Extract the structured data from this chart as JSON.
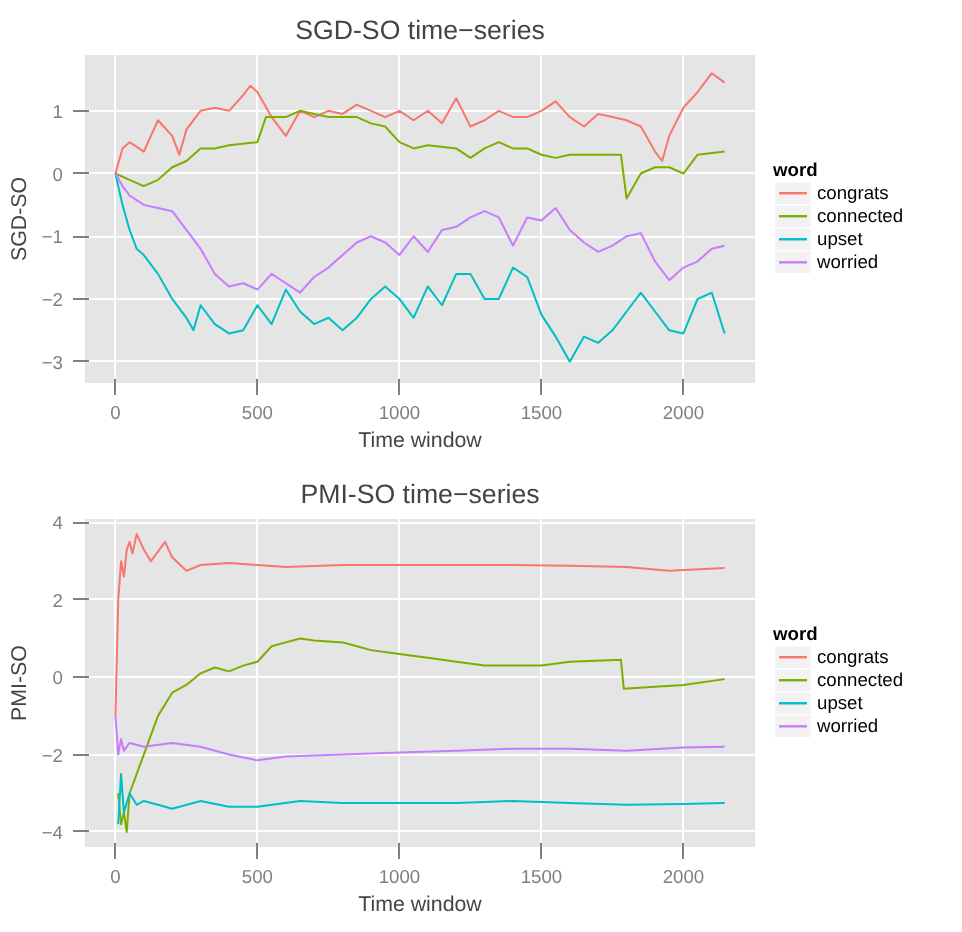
{
  "chart_data": [
    {
      "type": "line",
      "title": "SGD-SO time−series",
      "xlabel": "Time window",
      "ylabel": "SGD-SO",
      "legend_title": "word",
      "xlim": [
        -107,
        2252
      ],
      "ylim": [
        -3.34,
        1.89
      ],
      "xticks": [
        0,
        500,
        1000,
        1500,
        2000
      ],
      "yticks": [
        -3,
        -2,
        -1,
        0,
        1
      ],
      "grid": true,
      "legend": "right",
      "series": [
        {
          "name": "congrats",
          "color": "#f8766d",
          "x": [
            0,
            25,
            50,
            100,
            150,
            200,
            225,
            250,
            300,
            350,
            400,
            450,
            475,
            500,
            550,
            600,
            650,
            700,
            750,
            800,
            850,
            900,
            950,
            1000,
            1050,
            1100,
            1150,
            1200,
            1250,
            1300,
            1350,
            1400,
            1450,
            1500,
            1550,
            1600,
            1650,
            1700,
            1750,
            1800,
            1850,
            1900,
            1925,
            1950,
            2000,
            2050,
            2100,
            2145
          ],
          "values": [
            0,
            0.4,
            0.5,
            0.35,
            0.85,
            0.6,
            0.3,
            0.7,
            1.0,
            1.05,
            1.0,
            1.25,
            1.4,
            1.3,
            0.9,
            0.6,
            1.0,
            0.9,
            1.0,
            0.95,
            1.1,
            1.0,
            0.9,
            1.0,
            0.85,
            1.0,
            0.8,
            1.2,
            0.75,
            0.85,
            1.0,
            0.9,
            0.9,
            1.0,
            1.15,
            0.9,
            0.75,
            0.95,
            0.9,
            0.85,
            0.75,
            0.35,
            0.2,
            0.6,
            1.05,
            1.3,
            1.6,
            1.45
          ]
        },
        {
          "name": "connected",
          "color": "#7cae00",
          "x": [
            0,
            50,
            100,
            150,
            200,
            250,
            300,
            350,
            400,
            500,
            530,
            600,
            650,
            700,
            750,
            850,
            900,
            950,
            1000,
            1050,
            1100,
            1200,
            1250,
            1300,
            1350,
            1400,
            1450,
            1500,
            1550,
            1600,
            1700,
            1780,
            1800,
            1850,
            1900,
            1950,
            2000,
            2050,
            2145
          ],
          "values": [
            0,
            -0.1,
            -0.2,
            -0.1,
            0.1,
            0.2,
            0.4,
            0.4,
            0.45,
            0.5,
            0.9,
            0.9,
            1.0,
            0.95,
            0.9,
            0.9,
            0.8,
            0.75,
            0.5,
            0.4,
            0.45,
            0.4,
            0.25,
            0.4,
            0.5,
            0.4,
            0.4,
            0.3,
            0.25,
            0.3,
            0.3,
            0.3,
            -0.4,
            0.0,
            0.1,
            0.1,
            0.0,
            0.3,
            0.35
          ]
        },
        {
          "name": "upset",
          "color": "#00bfc4",
          "x": [
            0,
            25,
            50,
            75,
            100,
            150,
            200,
            250,
            275,
            300,
            350,
            400,
            450,
            500,
            550,
            600,
            650,
            700,
            750,
            800,
            850,
            900,
            950,
            1000,
            1050,
            1100,
            1150,
            1200,
            1250,
            1300,
            1350,
            1400,
            1450,
            1500,
            1550,
            1600,
            1650,
            1700,
            1750,
            1800,
            1850,
            1900,
            1950,
            2000,
            2050,
            2100,
            2145
          ],
          "values": [
            0,
            -0.5,
            -0.9,
            -1.2,
            -1.3,
            -1.6,
            -2.0,
            -2.3,
            -2.5,
            -2.1,
            -2.4,
            -2.55,
            -2.5,
            -2.1,
            -2.4,
            -1.85,
            -2.2,
            -2.4,
            -2.3,
            -2.5,
            -2.3,
            -2.0,
            -1.8,
            -2.0,
            -2.3,
            -1.8,
            -2.1,
            -1.6,
            -1.6,
            -2.0,
            -2.0,
            -1.5,
            -1.65,
            -2.25,
            -2.6,
            -3.0,
            -2.6,
            -2.7,
            -2.5,
            -2.2,
            -1.9,
            -2.2,
            -2.5,
            -2.55,
            -2.0,
            -1.9,
            -2.55
          ]
        },
        {
          "name": "worried",
          "color": "#c77cff",
          "x": [
            0,
            25,
            50,
            100,
            150,
            200,
            250,
            300,
            350,
            400,
            450,
            500,
            550,
            600,
            650,
            700,
            750,
            800,
            850,
            900,
            950,
            1000,
            1050,
            1100,
            1150,
            1200,
            1250,
            1300,
            1350,
            1400,
            1450,
            1500,
            1550,
            1600,
            1650,
            1700,
            1750,
            1800,
            1850,
            1900,
            1950,
            2000,
            2050,
            2100,
            2145
          ],
          "values": [
            0,
            -0.2,
            -0.35,
            -0.5,
            -0.55,
            -0.6,
            -0.9,
            -1.2,
            -1.6,
            -1.8,
            -1.75,
            -1.85,
            -1.6,
            -1.75,
            -1.9,
            -1.65,
            -1.5,
            -1.3,
            -1.1,
            -1.0,
            -1.1,
            -1.3,
            -1.0,
            -1.25,
            -0.9,
            -0.85,
            -0.7,
            -0.6,
            -0.7,
            -1.15,
            -0.7,
            -0.75,
            -0.55,
            -0.9,
            -1.1,
            -1.25,
            -1.15,
            -1.0,
            -0.95,
            -1.4,
            -1.7,
            -1.5,
            -1.4,
            -1.2,
            -1.15
          ]
        }
      ]
    },
    {
      "type": "line",
      "title": "PMI-SO time−series",
      "xlabel": "Time window",
      "ylabel": "PMI-SO",
      "legend_title": "word",
      "xlim": [
        -107,
        2252
      ],
      "ylim": [
        -4.39,
        4.09
      ],
      "xticks": [
        0,
        500,
        1000,
        1500,
        2000
      ],
      "yticks": [
        -4,
        -2,
        0,
        2,
        4
      ],
      "grid": true,
      "legend": "right",
      "series": [
        {
          "name": "congrats",
          "color": "#f8766d",
          "x": [
            0,
            10,
            20,
            30,
            40,
            50,
            60,
            75,
            100,
            125,
            175,
            200,
            250,
            300,
            400,
            500,
            600,
            800,
            1000,
            1200,
            1400,
            1600,
            1800,
            1950,
            2145
          ],
          "values": [
            -1.0,
            2.0,
            3.0,
            2.6,
            3.3,
            3.5,
            3.2,
            3.7,
            3.3,
            3.0,
            3.5,
            3.1,
            2.75,
            2.9,
            2.95,
            2.9,
            2.85,
            2.9,
            2.9,
            2.9,
            2.9,
            2.88,
            2.85,
            2.75,
            2.82
          ]
        },
        {
          "name": "connected",
          "color": "#7cae00",
          "x": [
            10,
            20,
            30,
            40,
            50,
            75,
            100,
            150,
            200,
            250,
            300,
            350,
            400,
            450,
            500,
            550,
            600,
            650,
            700,
            800,
            850,
            900,
            1000,
            1100,
            1200,
            1300,
            1400,
            1500,
            1600,
            1780,
            1790,
            1900,
            2000,
            2145
          ],
          "values": [
            -3.0,
            -3.8,
            -3.5,
            -4.0,
            -3.0,
            -2.5,
            -2.0,
            -1.0,
            -0.4,
            -0.2,
            0.1,
            0.25,
            0.15,
            0.3,
            0.4,
            0.8,
            0.9,
            1.0,
            0.95,
            0.9,
            0.8,
            0.7,
            0.6,
            0.5,
            0.4,
            0.3,
            0.3,
            0.3,
            0.4,
            0.45,
            -0.3,
            -0.25,
            -0.2,
            -0.05
          ]
        },
        {
          "name": "upset",
          "color": "#00bfc4",
          "x": [
            10,
            20,
            30,
            50,
            75,
            100,
            150,
            200,
            300,
            400,
            500,
            650,
            800,
            1000,
            1200,
            1400,
            1600,
            1800,
            2000,
            2145
          ],
          "values": [
            -3.8,
            -2.5,
            -3.5,
            -3.0,
            -3.3,
            -3.2,
            -3.3,
            -3.4,
            -3.2,
            -3.35,
            -3.35,
            -3.2,
            -3.25,
            -3.25,
            -3.25,
            -3.2,
            -3.25,
            -3.3,
            -3.28,
            -3.25
          ]
        },
        {
          "name": "worried",
          "color": "#c77cff",
          "x": [
            0,
            10,
            20,
            30,
            50,
            100,
            200,
            300,
            400,
            500,
            600,
            800,
            1000,
            1200,
            1400,
            1600,
            1800,
            2000,
            2145
          ],
          "values": [
            -1.0,
            -2.0,
            -1.6,
            -1.9,
            -1.7,
            -1.8,
            -1.7,
            -1.8,
            -2.0,
            -2.15,
            -2.05,
            -2.0,
            -1.95,
            -1.9,
            -1.85,
            -1.85,
            -1.9,
            -1.82,
            -1.8
          ]
        }
      ]
    }
  ]
}
